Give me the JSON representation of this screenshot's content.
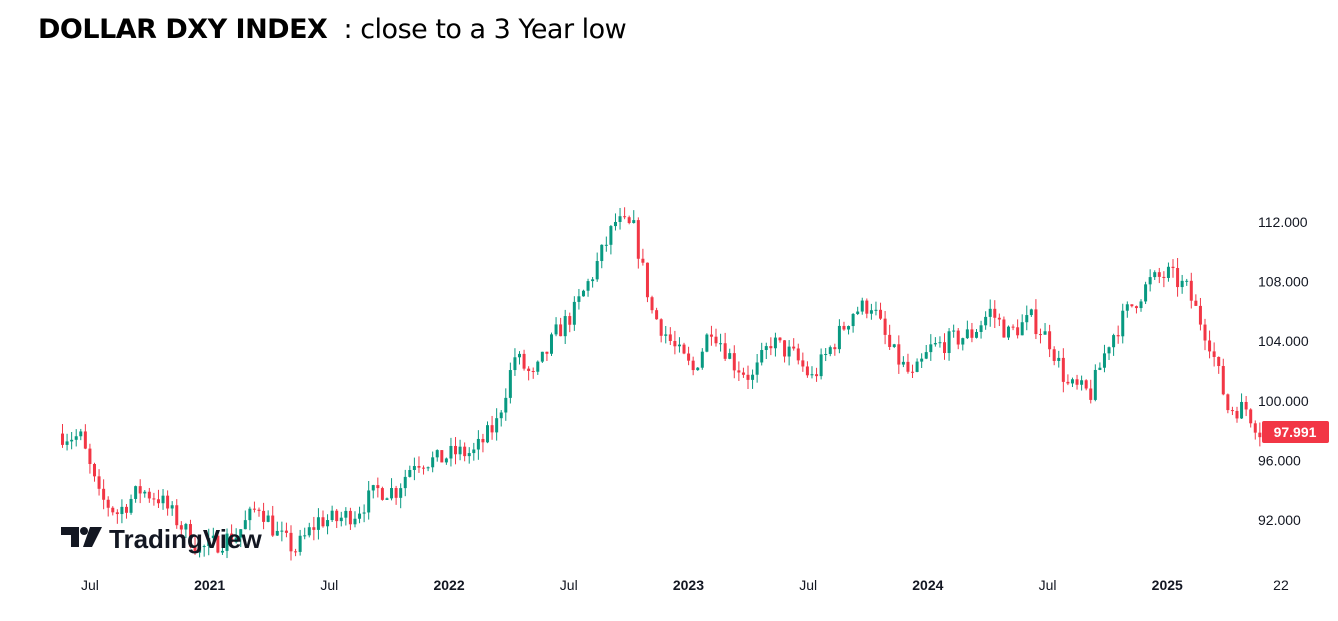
{
  "title": {
    "bold": "DOLLAR DXY INDEX",
    "rest": "  : close to a 3 Year low"
  },
  "watermark": "TradingView",
  "chart_data": {
    "type": "candlestick",
    "title": "DOLLAR DXY INDEX : close to a 3 Year low",
    "interval": "weekly (shown as monthly approximate closes)",
    "start_month": "2020-06",
    "monthly_close": [
      97.5,
      93.5,
      92.5,
      94,
      93.5,
      92,
      90,
      90.5,
      91,
      93,
      91,
      90,
      92,
      92,
      92.5,
      94,
      94,
      96,
      96,
      96.5,
      96.5,
      98.5,
      103,
      101.5,
      104.5,
      106,
      108.5,
      112,
      111.5,
      106,
      103.5,
      102,
      105,
      102.5,
      101.5,
      104,
      103,
      101.5,
      103.5,
      106,
      106.5,
      103.5,
      101.5,
      103.5,
      104,
      104.5,
      106,
      104.5,
      105.5,
      104,
      101,
      100.5,
      104,
      106,
      108,
      108.5,
      107.5,
      104,
      99.5,
      99.5,
      98
    ],
    "last_price": "97.991",
    "y_ticks": [
      "112.000",
      "108.000",
      "104.000",
      "100.000",
      "96.000",
      "92.000"
    ],
    "y_tick_values": [
      112,
      108,
      104,
      100,
      96,
      92
    ],
    "x_ticks": [
      {
        "label": "Jul",
        "month": 1,
        "bold": false
      },
      {
        "label": "2021",
        "month": 7,
        "bold": true
      },
      {
        "label": "Jul",
        "month": 13,
        "bold": false
      },
      {
        "label": "2022",
        "month": 19,
        "bold": true
      },
      {
        "label": "Jul",
        "month": 25,
        "bold": false
      },
      {
        "label": "2023",
        "month": 31,
        "bold": true
      },
      {
        "label": "Jul",
        "month": 37,
        "bold": false
      },
      {
        "label": "2024",
        "month": 43,
        "bold": true
      },
      {
        "label": "Jul",
        "month": 49,
        "bold": false
      },
      {
        "label": "2025",
        "month": 55,
        "bold": true
      },
      {
        "label": "22",
        "month": 60.7,
        "bold": false
      }
    ],
    "colors": {
      "up": "#089981",
      "down": "#f23645",
      "label_bg": "#f23645"
    }
  }
}
